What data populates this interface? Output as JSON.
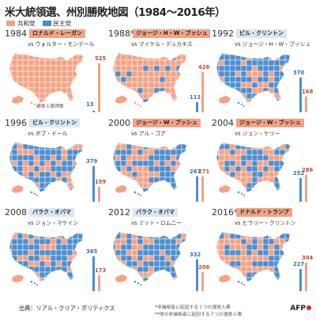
{
  "title": "米大統領選、州別勝敗地図（1984～2016年）",
  "legend": [
    {
      "label": "共和党",
      "color": "#f4a285"
    },
    {
      "label": "民主党",
      "color": "#4b8fd1"
    }
  ],
  "colors": {
    "rep": "#f4a285",
    "dem": "#4b8fd1",
    "rep_text": "#c44a2a",
    "dem_text": "#2d6fb3"
  },
  "ev_note": "選挙人獲得数",
  "elections": [
    {
      "year": "1984",
      "winner": "ロナルド・レーガン",
      "winner_party": "rep",
      "vs": "vs ウォルター・モンデール",
      "rep_ev": "525",
      "dem_ev": "13",
      "rep_share": 0.976,
      "dem_share": 0.024
    },
    {
      "year": "1988*",
      "winner": "ジョージ・H・W・ブッシュ",
      "winner_party": "rep",
      "vs": "vs マイケル・デュカキス",
      "rep_ev": "426",
      "dem_ev": "111",
      "rep_share": 0.79,
      "dem_share": 0.21
    },
    {
      "year": "1992",
      "winner": "ビル・クリントン",
      "winner_party": "dem",
      "vs": "vs ジョージ・H・W・ブッシュ",
      "rep_ev": "168",
      "dem_ev": "370",
      "rep_share": 0.31,
      "dem_share": 0.69
    },
    {
      "year": "1996",
      "winner": "ビル・クリントン",
      "winner_party": "dem",
      "vs": "vs ボブ・ドール",
      "rep_ev": "159",
      "dem_ev": "379",
      "rep_share": 0.3,
      "dem_share": 0.7
    },
    {
      "year": "2000",
      "winner": "ジョージ・W・ブッシュ",
      "winner_party": "rep",
      "vs": "vs アル・ゴア",
      "rep_ev": "271",
      "dem_ev": "267",
      "rep_share": 0.5,
      "dem_share": 0.5
    },
    {
      "year": "2004",
      "winner": "ジョージ・W・ブッシュ",
      "winner_party": "rep",
      "vs": "vs ジョン・ケリー",
      "rep_ev": "286",
      "dem_ev": "252",
      "rep_share": 0.53,
      "dem_share": 0.47
    },
    {
      "year": "2008",
      "winner": "バラク・オバマ",
      "winner_party": "dem",
      "vs": "vs ジョン・マケイン",
      "rep_ev": "173",
      "dem_ev": "365",
      "rep_share": 0.32,
      "dem_share": 0.68
    },
    {
      "year": "2012",
      "winner": "バラク・オバマ",
      "winner_party": "dem",
      "vs": "vs ミット・ロムニー",
      "rep_ev": "206",
      "dem_ev": "332",
      "rep_share": 0.38,
      "dem_share": 0.62
    },
    {
      "year": "2016**",
      "winner": "ドナルド・トランプ",
      "winner_party": "rep",
      "vs": "vs ヒラリー・クリントン",
      "rep_ev": "304",
      "dem_ev": "227",
      "rep_share": 0.57,
      "dem_share": 0.43
    }
  ],
  "source": "出典：リアル・クリア・ポリティクス",
  "footnotes": [
    "*非操縦者に起因する１つの選挙人票",
    "**他の非操縦者に起因する７つの選挙人票"
  ],
  "credit": "AFP"
}
